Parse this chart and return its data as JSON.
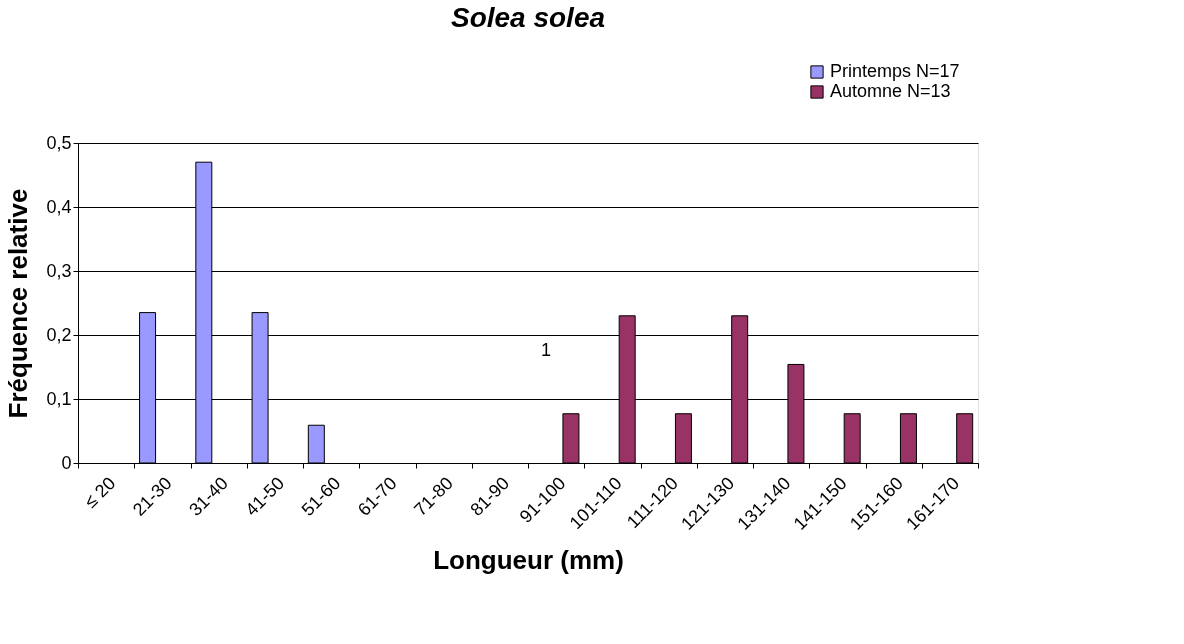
{
  "chart_data": {
    "type": "bar",
    "title": "Solea solea",
    "xlabel": "Longueur (mm)",
    "ylabel": "Fréquence relative",
    "categories": [
      "≤ 20",
      "21-30",
      "31-40",
      "41-50",
      "51-60",
      "61-70",
      "71-80",
      "81-90",
      "91-100",
      "101-110",
      "111-120",
      "121-130",
      "131-140",
      "141-150",
      "151-160",
      "161-170"
    ],
    "series": [
      {
        "name": "Printemps N=17",
        "color": "#9999ff",
        "values": [
          null,
          0.235,
          0.47,
          0.235,
          0.059,
          null,
          null,
          null,
          null,
          null,
          null,
          null,
          null,
          null,
          null,
          null
        ]
      },
      {
        "name": "Automne N=13",
        "color": "#993366",
        "values": [
          null,
          null,
          null,
          null,
          null,
          null,
          null,
          null,
          0.077,
          0.23,
          0.077,
          0.23,
          0.154,
          0.077,
          0.077,
          0.077
        ]
      }
    ],
    "ylim": [
      0,
      0.5
    ],
    "yticks": [
      0,
      {
        "value": 0.1,
        "label": "0,1"
      },
      {
        "value": 0.2,
        "label": "0,2"
      },
      {
        "value": 0.3,
        "label": "0,3"
      },
      {
        "value": 0.4,
        "label": "0,4"
      },
      {
        "value": 0.5,
        "label": "0,5"
      }
    ],
    "grid": "y",
    "legend": "top right",
    "annotations": [
      "1"
    ]
  }
}
